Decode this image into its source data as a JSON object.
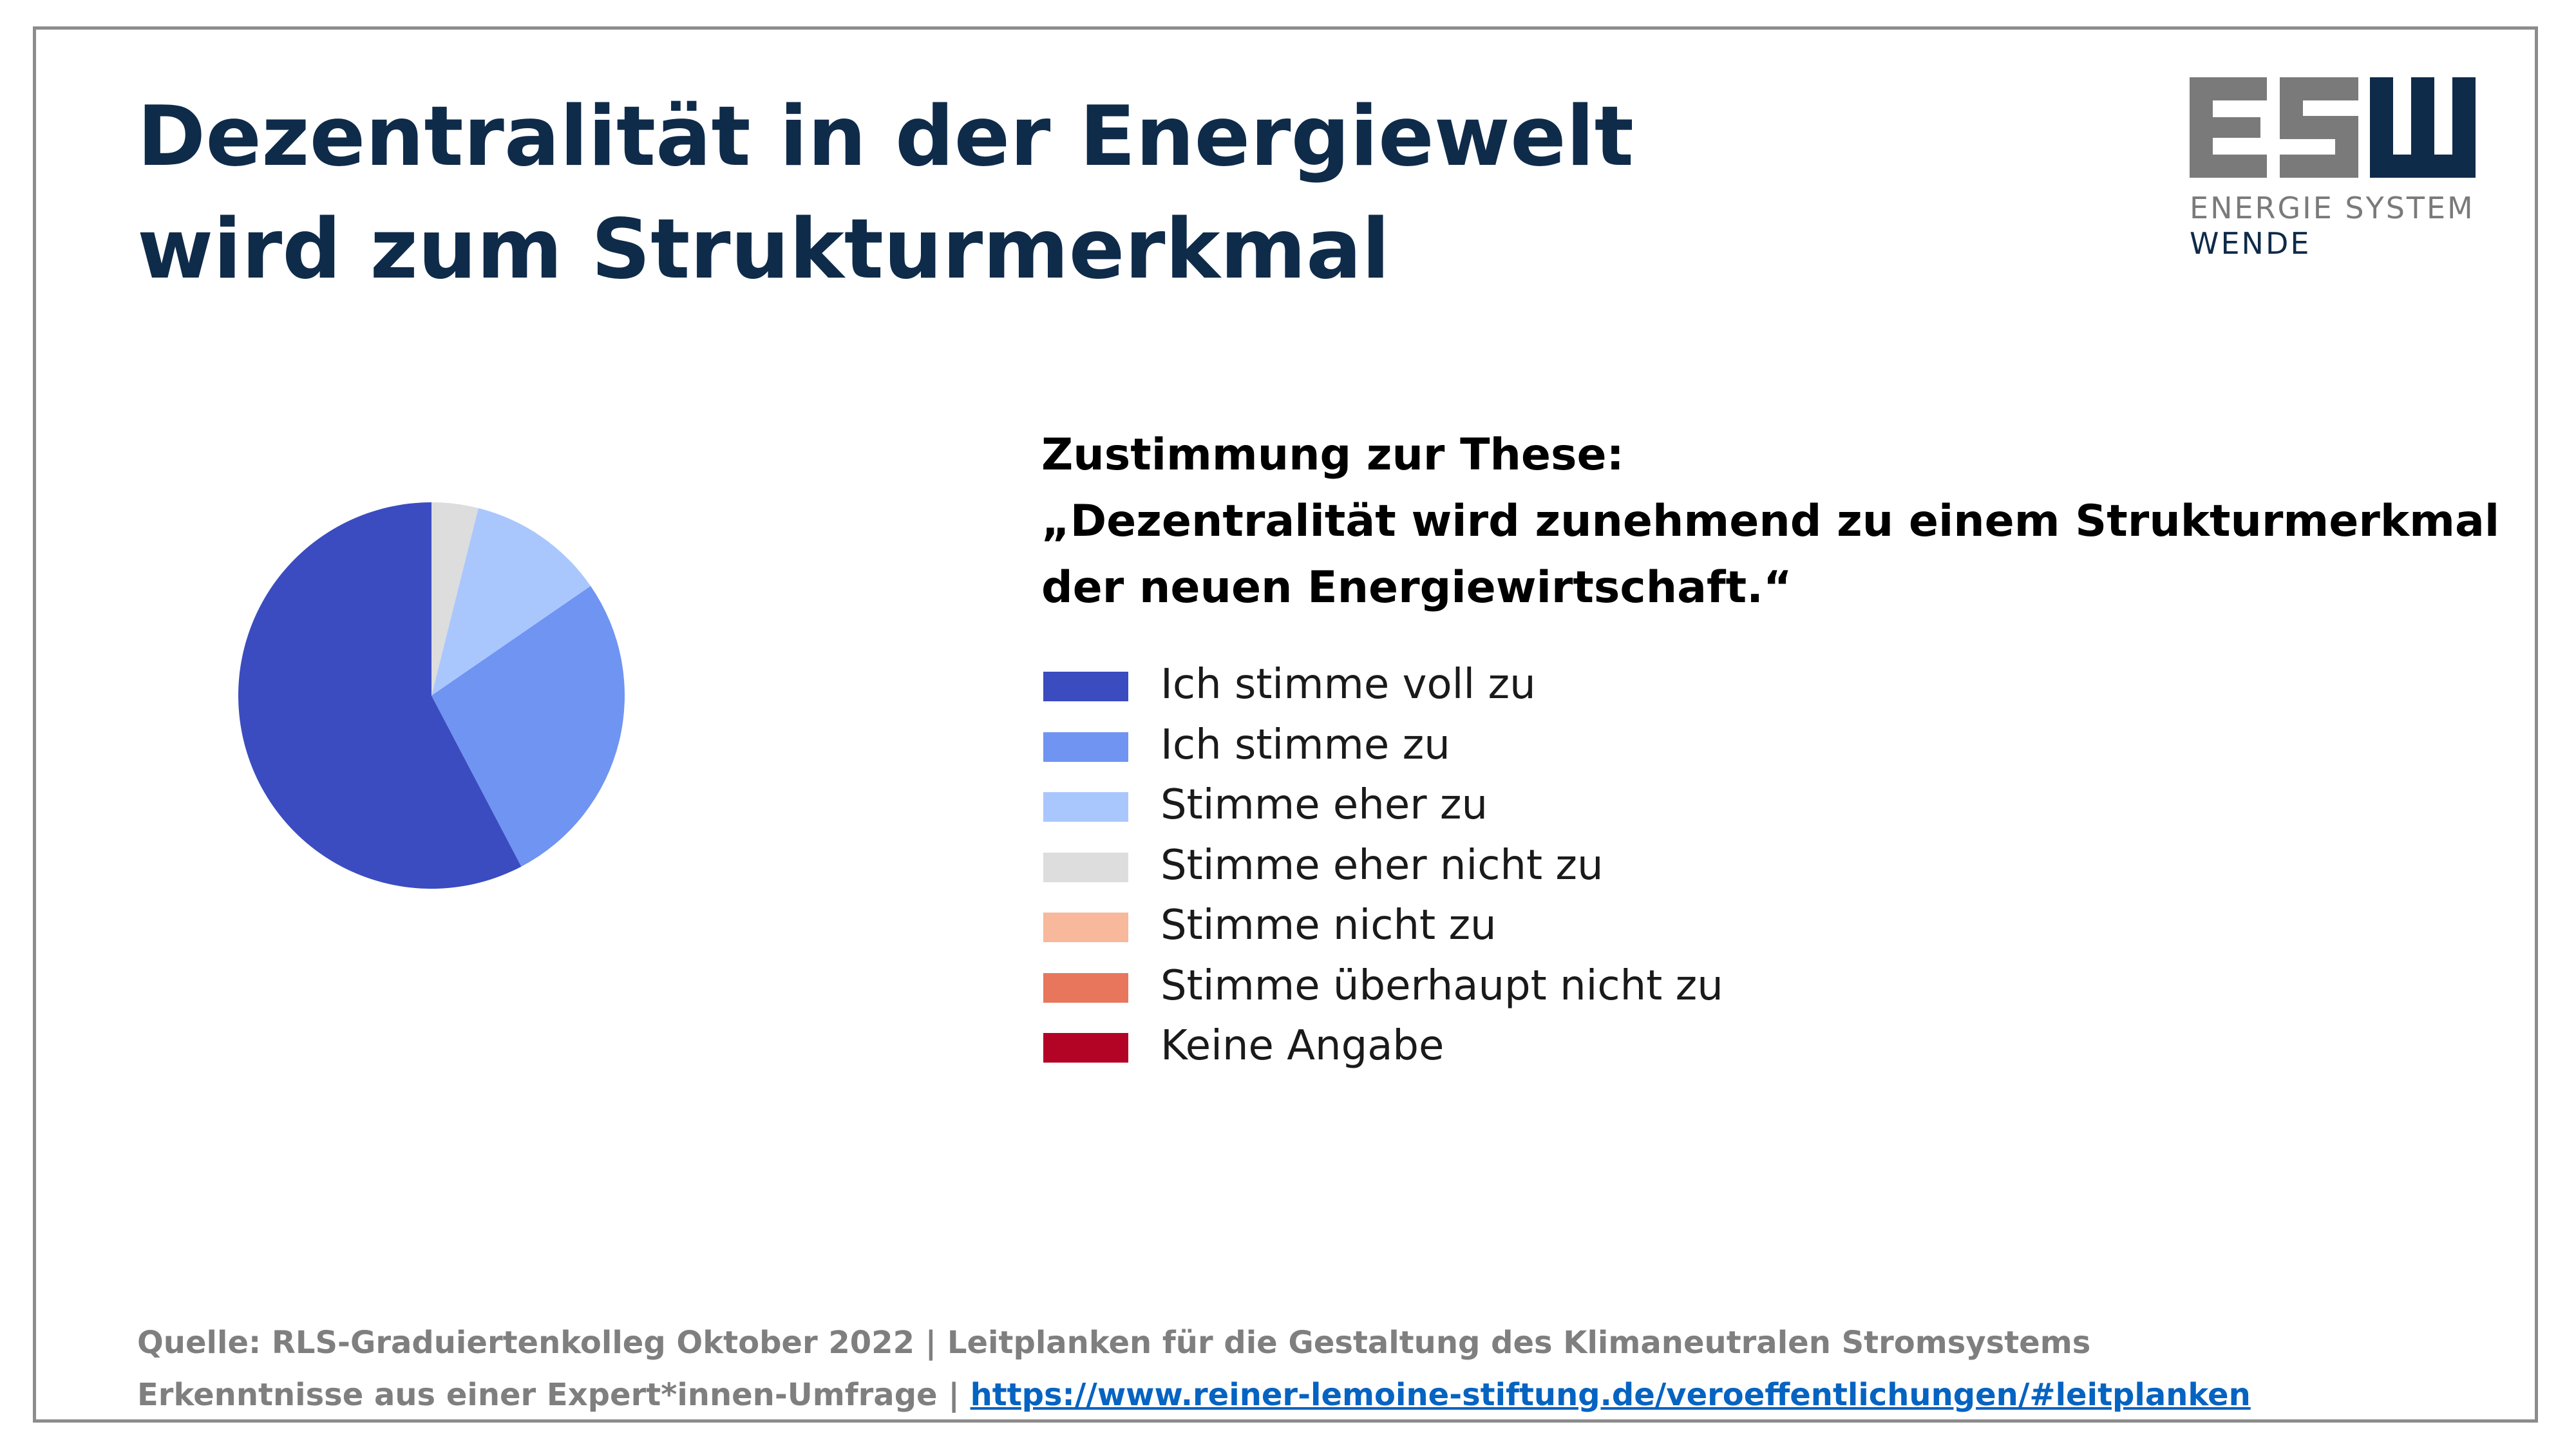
{
  "slide": {
    "title_line1": "Dezentralität in der Energiewelt",
    "title_line2": "wird zum Strukturmerkmal"
  },
  "logo": {
    "letters": "ESW",
    "subtitle_line1": "ENERGIE SYSTEM",
    "subtitle_line2": "WENDE",
    "colors": {
      "grey": "#7a7a7a",
      "navy": "#0f2b4a"
    }
  },
  "chart_data": {
    "type": "pie",
    "title_line1": "Zustimmung zur These:",
    "title_line2": "„Dezentralität wird zunehmend zu einem Strukturmerkmal",
    "title_line3": "der neuen Energiewirtschaft.“",
    "legend_position": "right",
    "start_angle_deg": 90,
    "direction": "counterclockwise",
    "categories": [
      "Ich stimme voll zu",
      "Ich stimme zu",
      "Stimme eher zu",
      "Stimme eher nicht zu",
      "Stimme nicht zu",
      "Stimme überhaupt nicht zu",
      "Keine Angabe"
    ],
    "values": [
      57.7,
      26.9,
      11.5,
      3.9,
      0,
      0,
      0
    ],
    "colors": [
      "#3b4cc0",
      "#7094f2",
      "#aac7fd",
      "#dddddd",
      "#f7b89c",
      "#e8765c",
      "#b40426"
    ]
  },
  "footer": {
    "line1": "Quelle: RLS-Graduiertenkolleg Oktober 2022 | Leitplanken für die Gestaltung des Klimaneutralen Stromsystems",
    "line2_prefix": "Erkenntnisse aus einer Expert*innen-Umfrage | ",
    "link": "https://www.reiner-lemoine-stiftung.de/veroeffentlichungen/#leitplanken"
  }
}
